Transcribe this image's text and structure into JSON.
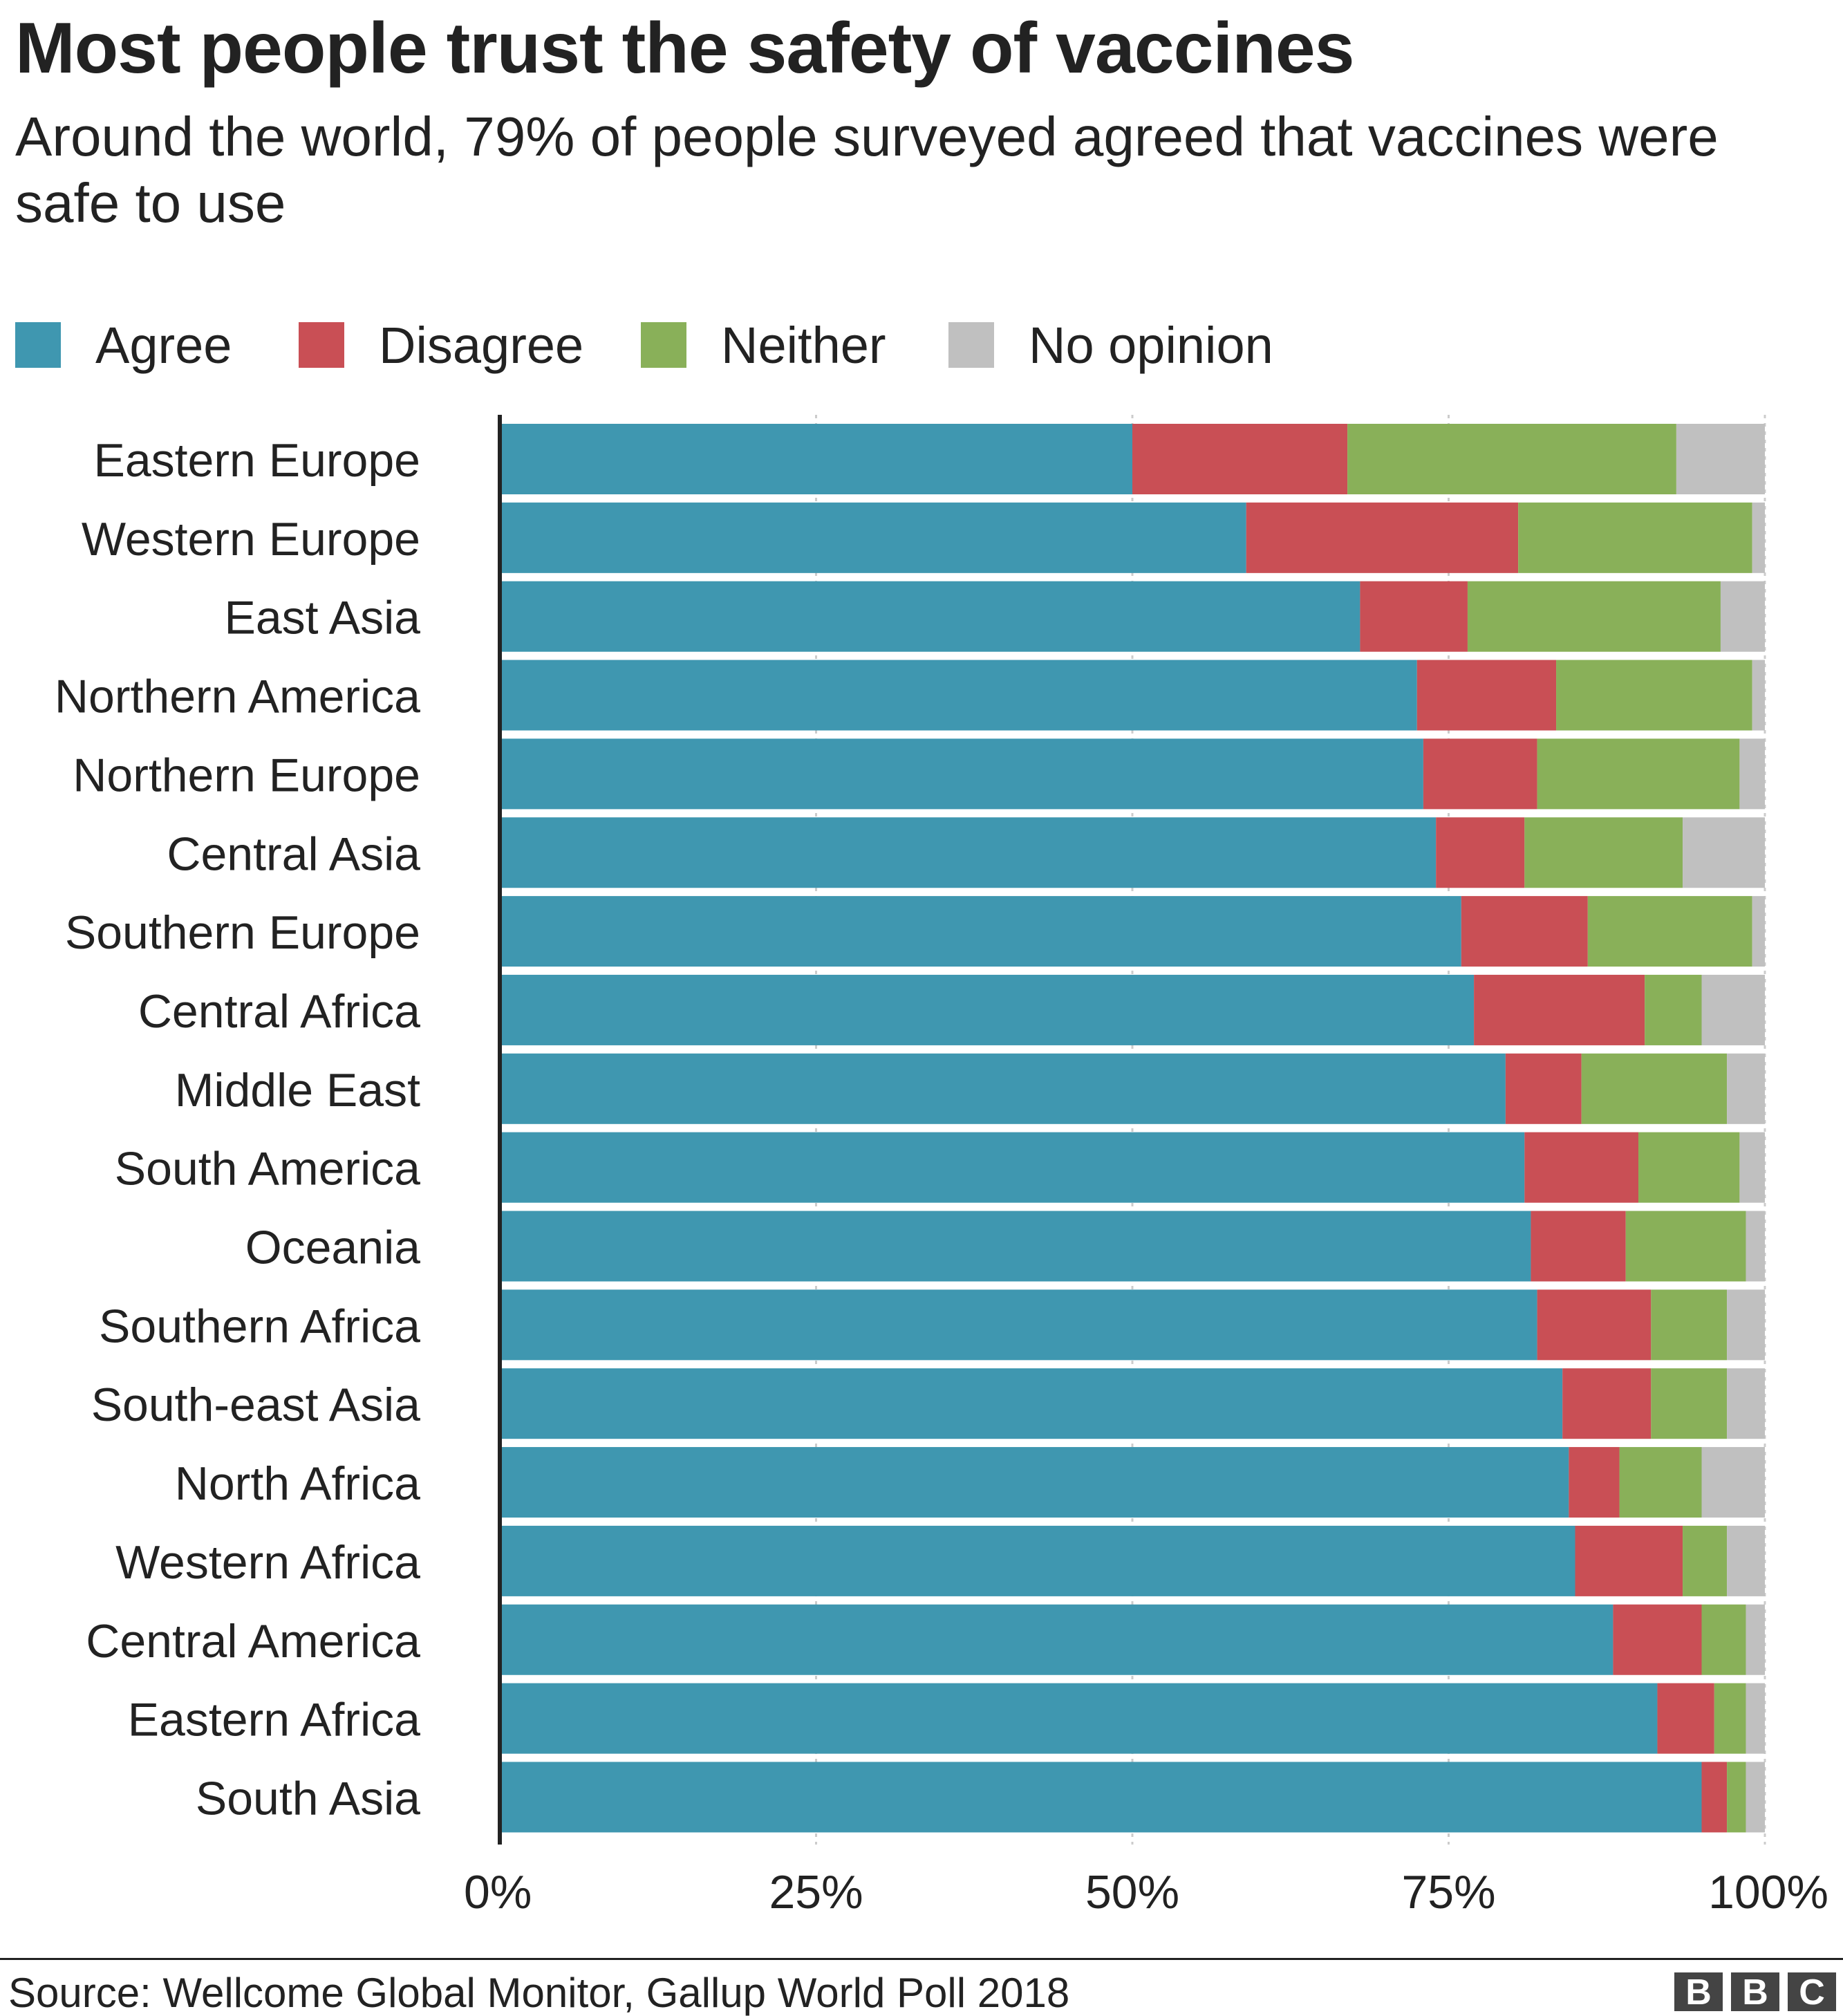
{
  "header": {
    "title": "Most people trust the safety of vaccines",
    "subtitle": "Around the world, 79% of people surveyed agreed that vaccines were safe to use"
  },
  "legend": [
    {
      "label": "Agree",
      "color": "#3f97b0"
    },
    {
      "label": "Disagree",
      "color": "#c94f55"
    },
    {
      "label": "Neither",
      "color": "#89b059"
    },
    {
      "label": "No opinion",
      "color": "#c0c0c0"
    }
  ],
  "chart_data": {
    "type": "bar",
    "orientation": "horizontal",
    "stacked": true,
    "title": "Most people trust the safety of vaccines",
    "subtitle": "Around the world, 79% of people surveyed agreed that vaccines were safe to use",
    "xlabel": "",
    "ylabel": "",
    "xlim": [
      0,
      100
    ],
    "x_ticks": [
      "0%",
      "25%",
      "50%",
      "75%",
      "100%"
    ],
    "x_tick_values": [
      0,
      25,
      50,
      75,
      100
    ],
    "grid": true,
    "legend_position": "top-left",
    "categories": [
      "Eastern Europe",
      "Western Europe",
      "East Asia",
      "Northern America",
      "Northern Europe",
      "Central Asia",
      "Southern Europe",
      "Central Africa",
      "Middle East",
      "South America",
      "Oceania",
      "Southern Africa",
      "South-east Asia",
      "North Africa",
      "Western Africa",
      "Central America",
      "Eastern Africa",
      "South Asia"
    ],
    "series": [
      {
        "name": "Agree",
        "color": "#3f97b0",
        "values": [
          50,
          59,
          68,
          72.5,
          73,
          74,
          76,
          77,
          79.5,
          81,
          81.5,
          82,
          84,
          84.5,
          85,
          88,
          91.5,
          95
        ]
      },
      {
        "name": "Disagree",
        "color": "#c94f55",
        "values": [
          17,
          21.5,
          8.5,
          11,
          9,
          7,
          10,
          13.5,
          6,
          9,
          7.5,
          9,
          7,
          4,
          8.5,
          7,
          4.5,
          2
        ]
      },
      {
        "name": "Neither",
        "color": "#89b059",
        "values": [
          26,
          18.5,
          20,
          15.5,
          16,
          12.5,
          13,
          4.5,
          11.5,
          8,
          9.5,
          6,
          6,
          6.5,
          3.5,
          3.5,
          2.5,
          1.5
        ]
      },
      {
        "name": "No opinion",
        "color": "#c0c0c0",
        "values": [
          7,
          1,
          3.5,
          1,
          2,
          6.5,
          1,
          5,
          3,
          2,
          1.5,
          3,
          3,
          5,
          3,
          1.5,
          1.5,
          1.5
        ]
      }
    ]
  },
  "footer": {
    "source": "Source: Wellcome Global Monitor, Gallup World Poll 2018",
    "logo_letters": [
      "B",
      "B",
      "C"
    ]
  }
}
